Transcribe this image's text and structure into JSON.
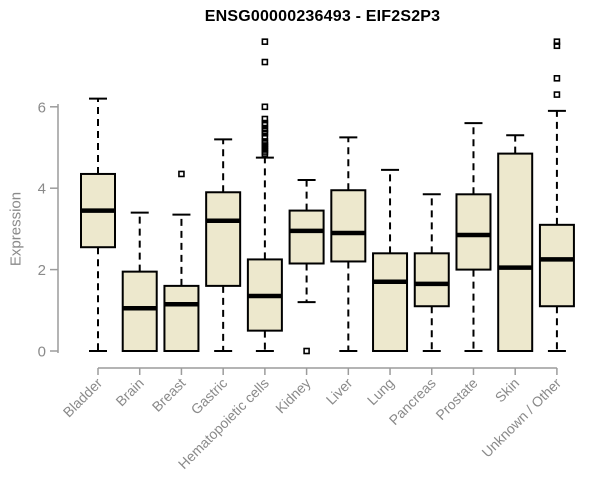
{
  "title": "ENSG00000236493 - EIF2S2P3",
  "y_axis_label": "Expression",
  "chart_data": {
    "type": "boxplot",
    "title": "ENSG00000236493 - EIF2S2P3",
    "xlabel": "",
    "ylabel": "Expression",
    "yticks": [
      0,
      2,
      4,
      6
    ],
    "ylim": [
      0,
      7.8
    ],
    "grid": false,
    "legend": "none",
    "categories": [
      "Bladder",
      "Brain",
      "Breast",
      "Gastric",
      "Hematopoietic cells",
      "Kidney",
      "Liver",
      "Lung",
      "Pancreas",
      "Prostate",
      "Skin",
      "Unknown / Other"
    ],
    "series": [
      {
        "name": "Bladder",
        "whisker_low": 0,
        "q1": 2.55,
        "median": 3.45,
        "q3": 4.35,
        "whisker_high": 6.2,
        "outliers": []
      },
      {
        "name": "Brain",
        "whisker_low": 0,
        "q1": 0,
        "median": 1.05,
        "q3": 1.95,
        "whisker_high": 3.4,
        "outliers": []
      },
      {
        "name": "Breast",
        "whisker_low": 0,
        "q1": 0,
        "median": 1.15,
        "q3": 1.6,
        "whisker_high": 3.35,
        "outliers": [
          4.35
        ]
      },
      {
        "name": "Gastric",
        "whisker_low": 0,
        "q1": 1.6,
        "median": 3.2,
        "q3": 3.9,
        "whisker_high": 5.2,
        "outliers": []
      },
      {
        "name": "Hematopoietic cells",
        "whisker_low": 0,
        "q1": 0.5,
        "median": 1.35,
        "q3": 2.25,
        "whisker_high": 4.75,
        "outliers": [
          4.85,
          4.9,
          4.95,
          5.0,
          5.05,
          5.1,
          5.15,
          5.25,
          5.35,
          5.4,
          5.45,
          5.55,
          5.6,
          5.7,
          6.0,
          7.1,
          7.6
        ]
      },
      {
        "name": "Kidney",
        "whisker_low": 1.2,
        "q1": 2.15,
        "median": 2.95,
        "q3": 3.45,
        "whisker_high": 4.2,
        "outliers": [
          0
        ]
      },
      {
        "name": "Liver",
        "whisker_low": 0,
        "q1": 2.2,
        "median": 2.9,
        "q3": 3.95,
        "whisker_high": 5.25,
        "outliers": []
      },
      {
        "name": "Lung",
        "whisker_low": 0,
        "q1": 0,
        "median": 1.7,
        "q3": 2.4,
        "whisker_high": 4.45,
        "outliers": []
      },
      {
        "name": "Pancreas",
        "whisker_low": 0,
        "q1": 1.1,
        "median": 1.65,
        "q3": 2.4,
        "whisker_high": 3.85,
        "outliers": []
      },
      {
        "name": "Prostate",
        "whisker_low": 0,
        "q1": 2.0,
        "median": 2.85,
        "q3": 3.85,
        "whisker_high": 5.6,
        "outliers": []
      },
      {
        "name": "Skin",
        "whisker_low": 0,
        "q1": 0,
        "median": 2.05,
        "q3": 4.85,
        "whisker_high": 5.3,
        "outliers": []
      },
      {
        "name": "Unknown / Other",
        "whisker_low": 0,
        "q1": 1.1,
        "median": 2.25,
        "q3": 3.1,
        "whisker_high": 5.9,
        "outliers": [
          6.3,
          6.7,
          7.5,
          7.6
        ]
      }
    ],
    "colors": {
      "box_fill": "#ede8cd",
      "box_stroke": "#000000",
      "median": "#000000",
      "whisker": "#000000",
      "outlier_stroke": "#000000",
      "axis_line": "#9c9c9c",
      "axis_text": "#8a8a8a",
      "title": "#000000",
      "background": "#ffffff"
    }
  }
}
